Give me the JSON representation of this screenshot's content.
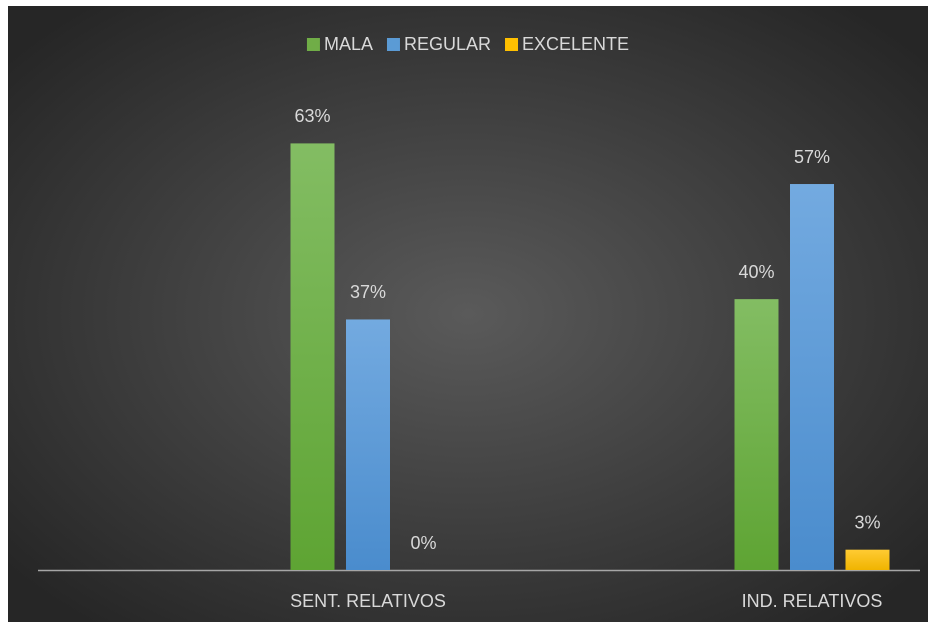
{
  "chart_data": {
    "type": "bar",
    "categories": [
      "SENT. RELATIVOS",
      "IND. RELATIVOS"
    ],
    "series": [
      {
        "name": "MALA",
        "color": "#70ad47",
        "values": [
          63,
          40
        ],
        "value_labels": [
          "63%",
          "40%"
        ]
      },
      {
        "name": "REGULAR",
        "color": "#5b9bd5",
        "values": [
          37,
          57
        ],
        "value_labels": [
          "37%",
          "57%"
        ]
      },
      {
        "name": "EXCELENTE",
        "color": "#ffc000",
        "values": [
          0,
          3
        ],
        "value_labels": [
          "0%",
          "3%"
        ]
      }
    ],
    "ylim": [
      0,
      70
    ],
    "legend": "top"
  }
}
